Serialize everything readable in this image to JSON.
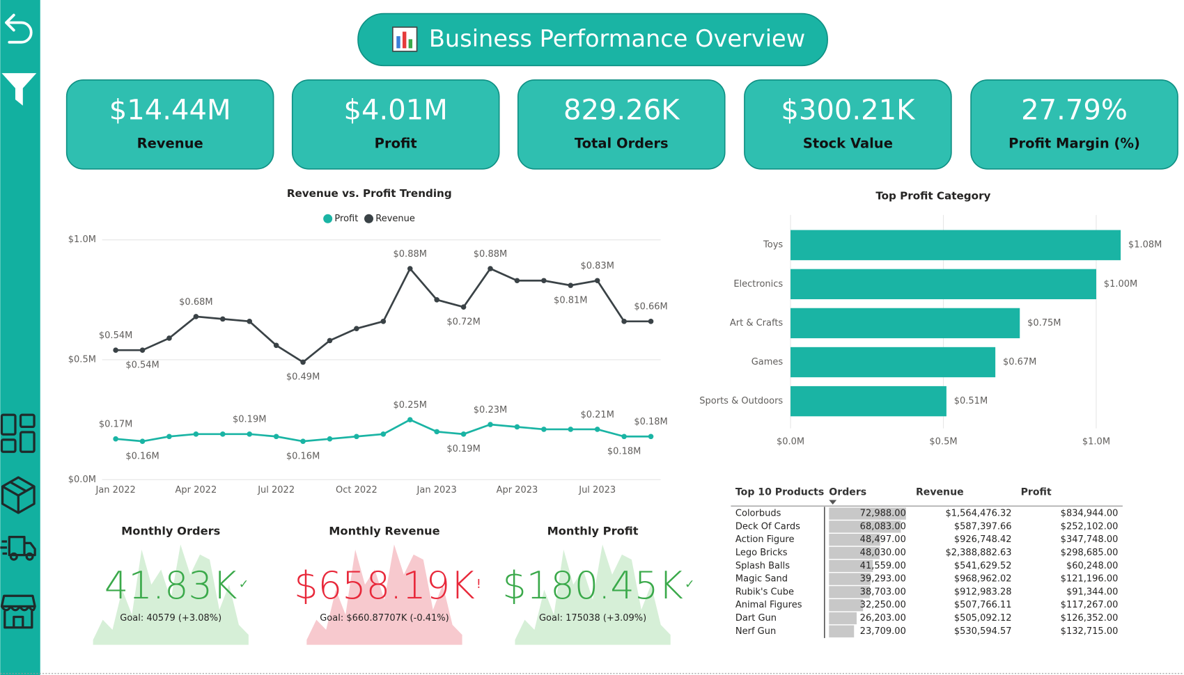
{
  "header": {
    "title": "Business Performance Overview"
  },
  "kpis": [
    {
      "value": "$14.44M",
      "label": "Revenue"
    },
    {
      "value": "$4.01M",
      "label": "Profit"
    },
    {
      "value": "829.26K",
      "label": "Total Orders"
    },
    {
      "value": "$300.21K",
      "label": "Stock Value"
    },
    {
      "value": "27.79%",
      "label": "Profit Margin (%)"
    }
  ],
  "chart_data": [
    {
      "type": "line",
      "title": "Revenue vs. Profit Trending",
      "categories": [
        "Jan 2022",
        null,
        null,
        "Apr 2022",
        null,
        null,
        "Jul 2022",
        null,
        null,
        "Oct 2022",
        null,
        null,
        "Jan 2023",
        null,
        null,
        "Apr 2023",
        null,
        null,
        "Jul 2023",
        null,
        null
      ],
      "series": [
        {
          "name": "Profit",
          "color": "#1ab4a4",
          "values": [
            0.17,
            0.16,
            0.18,
            0.19,
            0.19,
            0.19,
            0.18,
            0.16,
            0.17,
            0.18,
            0.19,
            0.25,
            0.2,
            0.19,
            0.23,
            0.22,
            0.21,
            0.21,
            0.21,
            0.18,
            0.18
          ],
          "value_labels": [
            "$0.17M",
            "$0.16M",
            null,
            null,
            null,
            "$0.19M",
            null,
            "$0.16M",
            null,
            null,
            null,
            "$0.25M",
            null,
            "$0.19M",
            "$0.23M",
            null,
            null,
            null,
            "$0.21M",
            "$0.18M",
            "$0.18M"
          ]
        },
        {
          "name": "Revenue",
          "color": "#3a4246",
          "values": [
            0.54,
            0.54,
            0.59,
            0.68,
            0.67,
            0.66,
            0.56,
            0.49,
            0.58,
            0.63,
            0.66,
            0.88,
            0.75,
            0.72,
            0.88,
            0.83,
            0.83,
            0.81,
            0.83,
            0.66,
            0.66
          ],
          "value_labels": [
            "$0.54M",
            "$0.54M",
            null,
            "$0.68M",
            null,
            null,
            null,
            "$0.49M",
            null,
            null,
            null,
            "$0.88M",
            null,
            "$0.72M",
            "$0.88M",
            null,
            null,
            "$0.81M",
            "$0.83M",
            null,
            "$0.66M"
          ]
        }
      ],
      "ylim": [
        0,
        1
      ],
      "yticks": [
        {
          "value": 0,
          "label": "$0.0M"
        },
        {
          "value": 0.5,
          "label": "$0.5M"
        },
        {
          "value": 1,
          "label": "$1.0M"
        }
      ],
      "grid": true,
      "legend": "top"
    },
    {
      "type": "bar",
      "orientation": "horizontal",
      "title": "Top Profit Category",
      "categories": [
        "Toys",
        "Electronics",
        "Art & Crafts",
        "Games",
        "Sports & Outdoors"
      ],
      "values": [
        1.08,
        1.0,
        0.75,
        0.67,
        0.51
      ],
      "value_labels": [
        "$1.08M",
        "$1.00M",
        "$0.75M",
        "$0.67M",
        "$0.51M"
      ],
      "color": "#1ab4a4",
      "xlim": [
        0,
        1.2
      ],
      "xticks": [
        {
          "value": 0,
          "label": "$0.0M"
        },
        {
          "value": 0.5,
          "label": "$0.5M"
        },
        {
          "value": 1,
          "label": "$1.0M"
        }
      ],
      "grid": true
    }
  ],
  "monthly": [
    {
      "title": "Monthly Orders",
      "value": "41.83K",
      "indicator": "✓",
      "goal": "Goal: 40579 (+3.08%)",
      "color": "#3aa94a",
      "area_color": "#d6efd7"
    },
    {
      "title": "Monthly Revenue",
      "value": "$658.19K",
      "indicator": "!",
      "goal": "Goal: $660.87707K (-0.41%)",
      "color": "#e8283a",
      "area_color": "#f7c9ce"
    },
    {
      "title": "Monthly Profit",
      "value": "$180.45K",
      "indicator": "✓",
      "goal": "Goal: 175038 (+3.09%)",
      "color": "#3aa94a",
      "area_color": "#d6efd7"
    }
  ],
  "table": {
    "columns": [
      "Top 10 Products",
      "Orders",
      "Revenue",
      "Profit"
    ],
    "rows": [
      [
        "Colorbuds",
        "72,988.00",
        "$1,564,476.32",
        "$834,944.00"
      ],
      [
        "Deck Of Cards",
        "68,083.00",
        "$587,397.66",
        "$252,102.00"
      ],
      [
        "Action Figure",
        "48,497.00",
        "$926,748.42",
        "$347,748.00"
      ],
      [
        "Lego Bricks",
        "48,030.00",
        "$2,388,882.63",
        "$298,685.00"
      ],
      [
        "Splash Balls",
        "41,559.00",
        "$541,629.52",
        "$60,248.00"
      ],
      [
        "Magic Sand",
        "39,293.00",
        "$968,962.02",
        "$121,196.00"
      ],
      [
        "Rubik's Cube",
        "38,703.00",
        "$912,983.28",
        "$91,344.00"
      ],
      [
        "Animal Figures",
        "32,250.00",
        "$507,766.11",
        "$117,267.00"
      ],
      [
        "Dart Gun",
        "26,203.00",
        "$505,092.12",
        "$126,352.00"
      ],
      [
        "Nerf Gun",
        "23,709.00",
        "$530,594.57",
        "$132,715.00"
      ]
    ]
  }
}
